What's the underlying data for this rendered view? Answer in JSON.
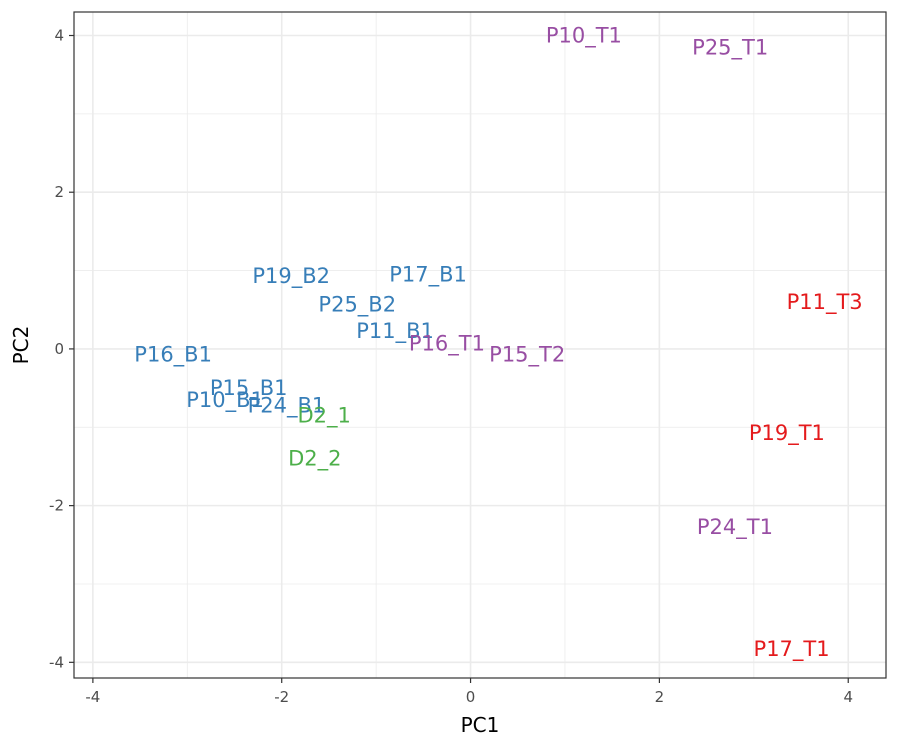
{
  "chart_data": {
    "type": "scatter",
    "xlabel": "PC1",
    "ylabel": "PC2",
    "xlim": [
      -4.2,
      4.4
    ],
    "ylim": [
      -4.2,
      4.3
    ],
    "x_ticks": [
      -4,
      -2,
      0,
      2,
      4
    ],
    "y_ticks": [
      -4,
      -2,
      0,
      2,
      4
    ],
    "grid": true,
    "colors": {
      "B": "#377eb8",
      "D": "#4daf4a",
      "T_purple": "#984ea3",
      "T_red": "#e41a1c"
    },
    "points": [
      {
        "label": "P10_T1",
        "x": 1.2,
        "y": 4.0,
        "color": "#984ea3"
      },
      {
        "label": "P25_T1",
        "x": 2.75,
        "y": 3.85,
        "color": "#984ea3"
      },
      {
        "label": "P19_B2",
        "x": -1.9,
        "y": 0.93,
        "color": "#377eb8"
      },
      {
        "label": "P17_B1",
        "x": -0.45,
        "y": 0.95,
        "color": "#377eb8"
      },
      {
        "label": "P25_B2",
        "x": -1.2,
        "y": 0.57,
        "color": "#377eb8"
      },
      {
        "label": "P11_B1",
        "x": -0.8,
        "y": 0.23,
        "color": "#377eb8"
      },
      {
        "label": "P16_T1",
        "x": -0.25,
        "y": 0.07,
        "color": "#984ea3"
      },
      {
        "label": "P15_T2",
        "x": 0.6,
        "y": -0.07,
        "color": "#984ea3"
      },
      {
        "label": "P16_B1",
        "x": -3.15,
        "y": -0.07,
        "color": "#377eb8"
      },
      {
        "label": "P15_B1",
        "x": -2.35,
        "y": -0.5,
        "color": "#377eb8"
      },
      {
        "label": "P10_B1",
        "x": -2.6,
        "y": -0.65,
        "color": "#377eb8"
      },
      {
        "label": "P24_B1",
        "x": -1.95,
        "y": -0.72,
        "color": "#377eb8"
      },
      {
        "label": "D2_1",
        "x": -1.55,
        "y": -0.85,
        "color": "#4daf4a"
      },
      {
        "label": "D2_2",
        "x": -1.65,
        "y": -1.4,
        "color": "#4daf4a"
      },
      {
        "label": "P11_T3",
        "x": 3.75,
        "y": 0.6,
        "color": "#e41a1c"
      },
      {
        "label": "P19_T1",
        "x": 3.35,
        "y": -1.07,
        "color": "#e41a1c"
      },
      {
        "label": "P24_T1",
        "x": 2.8,
        "y": -2.27,
        "color": "#984ea3"
      },
      {
        "label": "P17_T1",
        "x": 3.4,
        "y": -3.83,
        "color": "#e41a1c"
      }
    ]
  }
}
